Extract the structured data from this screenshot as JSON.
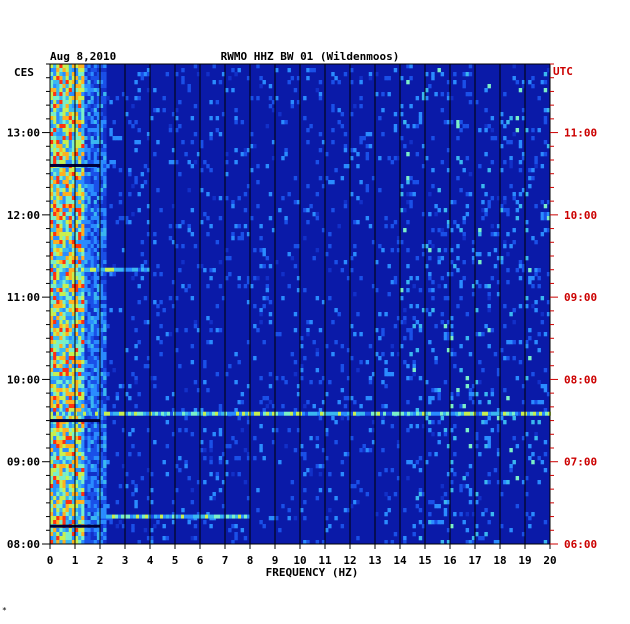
{
  "chart_data": {
    "type": "heatmap",
    "date": "Aug 8,2010",
    "title": "RWMO HHZ BW 01 (Wildenmoos)",
    "xlabel": "FREQUENCY (HZ)",
    "xlim": [
      0,
      20
    ],
    "x_ticks": [
      "0",
      "1",
      "2",
      "3",
      "4",
      "5",
      "6",
      "7",
      "8",
      "9",
      "10",
      "11",
      "12",
      "13",
      "14",
      "15",
      "16",
      "17",
      "18",
      "19",
      "20"
    ],
    "left_axis": {
      "label": "CES",
      "ticks": [
        "13:00",
        "12:00",
        "11:00",
        "10:00",
        "09:00",
        "08:00"
      ],
      "tick_hours": [
        13,
        12,
        11,
        10,
        9,
        8
      ]
    },
    "right_axis": {
      "label": "UTC",
      "ticks": [
        "11:00",
        "10:00",
        "09:00",
        "08:00",
        "07:00",
        "06:00"
      ],
      "tick_hours": [
        11,
        10,
        9,
        8,
        7,
        6
      ]
    },
    "time_range_ces": [
      "08:00",
      "13:50"
    ],
    "grid": true,
    "colors": {
      "background": "#0a1aa8",
      "low": "#0a1aa8",
      "mid": "#2a8cff",
      "high": "#7af0c8",
      "peak": "#ff3010",
      "right_axis_text": "#cc0000"
    },
    "events_ces": [
      {
        "time": "12:36",
        "type": "gap"
      },
      {
        "time": "09:30",
        "type": "gap"
      },
      {
        "time": "08:13",
        "type": "gap"
      },
      {
        "time": "11:20",
        "freq_range": [
          1,
          4
        ],
        "type": "broadband"
      },
      {
        "time": "09:35",
        "freq_range": [
          0,
          20
        ],
        "type": "broadband"
      },
      {
        "time": "08:20",
        "freq_range": [
          2,
          8
        ],
        "type": "broadband"
      }
    ],
    "corner_mark": "*"
  }
}
